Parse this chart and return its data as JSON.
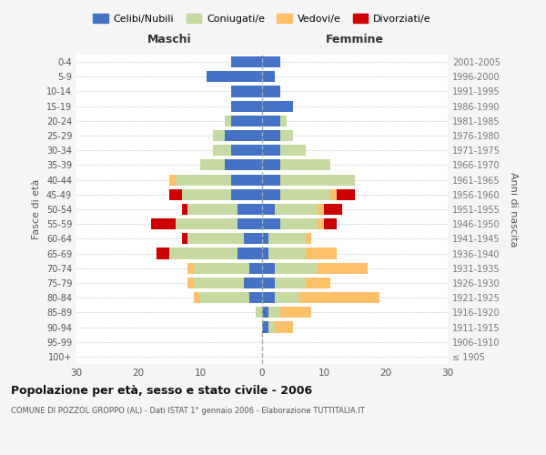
{
  "age_groups": [
    "100+",
    "95-99",
    "90-94",
    "85-89",
    "80-84",
    "75-79",
    "70-74",
    "65-69",
    "60-64",
    "55-59",
    "50-54",
    "45-49",
    "40-44",
    "35-39",
    "30-34",
    "25-29",
    "20-24",
    "15-19",
    "10-14",
    "5-9",
    "0-4"
  ],
  "birth_years": [
    "≤ 1905",
    "1906-1910",
    "1911-1915",
    "1916-1920",
    "1921-1925",
    "1926-1930",
    "1931-1935",
    "1936-1940",
    "1941-1945",
    "1946-1950",
    "1951-1955",
    "1956-1960",
    "1961-1965",
    "1966-1970",
    "1971-1975",
    "1976-1980",
    "1981-1985",
    "1986-1990",
    "1991-1995",
    "1996-2000",
    "2001-2005"
  ],
  "colors": {
    "celibe": "#4472c4",
    "coniugato": "#c5d9a0",
    "vedovo": "#ffc06a",
    "divorziato": "#cc0000"
  },
  "males": {
    "celibe": [
      0,
      0,
      0,
      0,
      2,
      3,
      2,
      4,
      3,
      4,
      4,
      5,
      5,
      6,
      5,
      6,
      5,
      5,
      5,
      9,
      5
    ],
    "coniugato": [
      0,
      0,
      0,
      1,
      8,
      8,
      9,
      11,
      9,
      10,
      8,
      8,
      9,
      4,
      3,
      2,
      1,
      0,
      0,
      0,
      0
    ],
    "vedovo": [
      0,
      0,
      0,
      0,
      1,
      1,
      1,
      0,
      0,
      0,
      0,
      0,
      1,
      0,
      0,
      0,
      0,
      0,
      0,
      0,
      0
    ],
    "divorziato": [
      0,
      0,
      0,
      0,
      0,
      0,
      0,
      2,
      1,
      4,
      1,
      2,
      0,
      0,
      0,
      0,
      0,
      0,
      0,
      0,
      0
    ]
  },
  "females": {
    "nubile": [
      0,
      0,
      1,
      1,
      2,
      2,
      2,
      1,
      1,
      3,
      2,
      3,
      3,
      3,
      3,
      3,
      3,
      5,
      3,
      2,
      3
    ],
    "coniugata": [
      0,
      0,
      1,
      2,
      4,
      5,
      7,
      6,
      6,
      6,
      7,
      8,
      12,
      8,
      4,
      2,
      1,
      0,
      0,
      0,
      0
    ],
    "vedova": [
      0,
      0,
      3,
      5,
      13,
      4,
      8,
      5,
      1,
      1,
      1,
      1,
      0,
      0,
      0,
      0,
      0,
      0,
      0,
      0,
      0
    ],
    "divorziata": [
      0,
      0,
      0,
      0,
      0,
      0,
      0,
      0,
      0,
      2,
      3,
      3,
      0,
      0,
      0,
      0,
      0,
      0,
      0,
      0,
      0
    ]
  },
  "xlim": 30,
  "title": "Popolazione per età, sesso e stato civile - 2006",
  "subtitle": "COMUNE DI POZZOL GROPPO (AL) - Dati ISTAT 1° gennaio 2006 - Elaborazione TUTTITALIA.IT",
  "ylabel_left": "Fasce di età",
  "ylabel_right": "Anni di nascita",
  "xlabel_male": "Maschi",
  "xlabel_female": "Femmine",
  "legend_labels": [
    "Celibi/Nubili",
    "Coniugati/e",
    "Vedovi/e",
    "Divorziati/e"
  ],
  "bg_color": "#f5f5f5",
  "plot_bg": "#ffffff"
}
